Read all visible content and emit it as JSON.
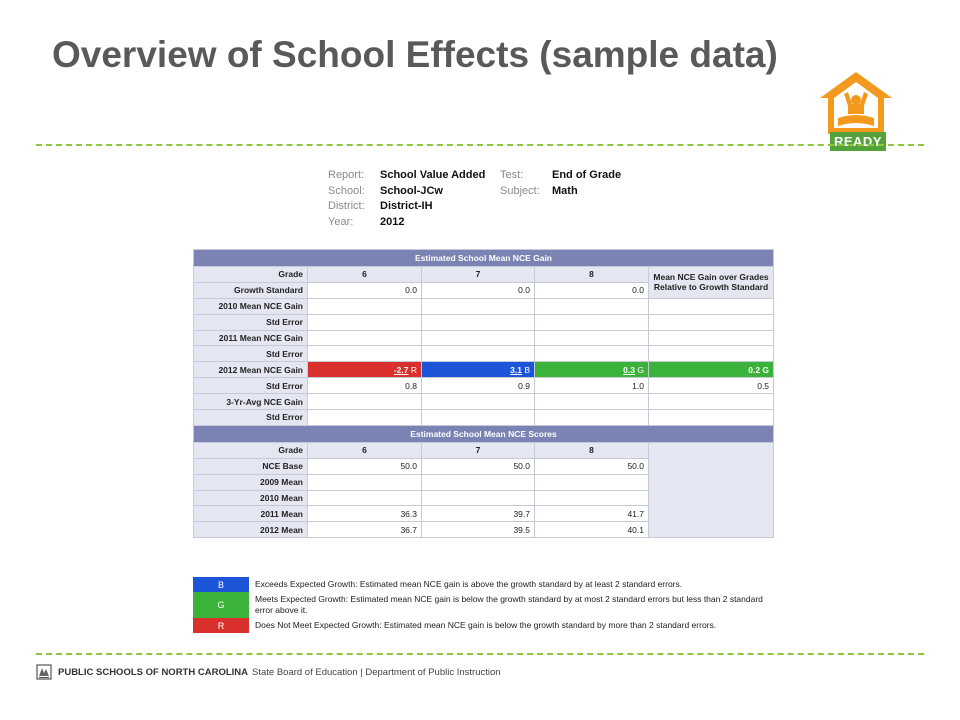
{
  "slide": {
    "title": "Overview of School Effects (sample data)",
    "logo_text": "READY"
  },
  "report_info": {
    "report_label": "Report:",
    "report_value": "School Value Added",
    "school_label": "School:",
    "school_value": "School-JCw",
    "district_label": "District:",
    "district_value": "District-IH",
    "year_label": "Year:",
    "year_value": "2012",
    "test_label": "Test:",
    "test_value": "End of Grade",
    "subject_label": "Subject:",
    "subject_value": "Math"
  },
  "gain_table": {
    "header": "Estimated School Mean NCE Gain",
    "grade_label": "Grade",
    "grades": [
      "6",
      "7",
      "8"
    ],
    "mean_header": "Mean NCE Gain over Grades Relative to Growth Standard",
    "rows": {
      "growth_standard": {
        "label": "Growth Standard",
        "values": [
          "0.0",
          "0.0",
          "0.0"
        ]
      },
      "mean_2010": {
        "label": "2010 Mean NCE Gain"
      },
      "se_2010": {
        "label": "Std Error"
      },
      "mean_2011": {
        "label": "2011 Mean NCE Gain"
      },
      "se_2011": {
        "label": "Std Error"
      },
      "mean_2012": {
        "label": "2012 Mean NCE Gain",
        "values": [
          "-2.7",
          "3.1",
          "0.3"
        ],
        "codes": [
          "R",
          "B",
          "G"
        ],
        "mean": "0.2 G"
      },
      "se_2012": {
        "label": "Std Error",
        "values": [
          "0.8",
          "0.9",
          "1.0"
        ],
        "mean": "0.5"
      },
      "avg_3yr": {
        "label": "3-Yr-Avg NCE Gain"
      },
      "se_3yr": {
        "label": "Std Error"
      }
    }
  },
  "scores_table": {
    "header": "Estimated School Mean NCE Scores",
    "grade_label": "Grade",
    "grades": [
      "6",
      "7",
      "8"
    ],
    "rows": {
      "nce_base": {
        "label": "NCE Base",
        "values": [
          "50.0",
          "50.0",
          "50.0"
        ]
      },
      "mean_2009": {
        "label": "2009 Mean"
      },
      "mean_2010": {
        "label": "2010 Mean"
      },
      "mean_2011": {
        "label": "2011 Mean",
        "values": [
          "36.3",
          "39.7",
          "41.7"
        ]
      },
      "mean_2012": {
        "label": "2012 Mean",
        "values": [
          "36.7",
          "39.5",
          "40.1"
        ]
      }
    }
  },
  "legend": {
    "b_code": "B",
    "b_text": "Exceeds Expected Growth: Estimated mean NCE gain is above the growth standard by at least 2 standard errors.",
    "g_code": "G",
    "g_text": "Meets Expected Growth: Estimated mean NCE gain is below the growth standard by at most 2 standard errors but less than 2 standard error above it.",
    "r_code": "R",
    "r_text": "Does Not Meet Expected Growth: Estimated mean NCE gain is below the growth standard by more than 2 standard errors."
  },
  "footer": {
    "org": "PUBLIC SCHOOLS OF NORTH CAROLINA",
    "rest": "State Board of Education | Department of Public Instruction"
  },
  "colors": {
    "title": "#595959",
    "accent_dash": "#8dc63f",
    "logo_orange": "#f39a1e",
    "logo_green": "#54a33a",
    "header_purple": "#7a83b3",
    "label_bg": "#e4e6f1",
    "red": "#d9302d",
    "blue": "#1c55d8",
    "green": "#3bb33b"
  },
  "icons": [
    "house-person-logo-icon",
    "state-seal-icon"
  ]
}
